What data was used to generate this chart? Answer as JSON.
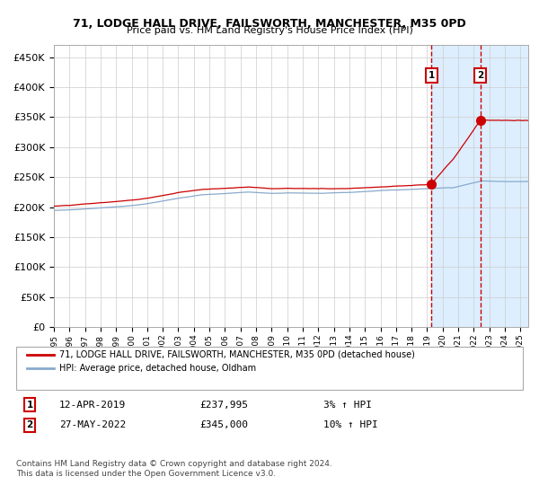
{
  "title": "71, LODGE HALL DRIVE, FAILSWORTH, MANCHESTER, M35 0PD",
  "subtitle": "Price paid vs. HM Land Registry's House Price Index (HPI)",
  "legend_line1": "71, LODGE HALL DRIVE, FAILSWORTH, MANCHESTER, M35 0PD (detached house)",
  "legend_line2": "HPI: Average price, detached house, Oldham",
  "annotation1_date": "12-APR-2019",
  "annotation1_price": "£237,995",
  "annotation1_hpi": "3% ↑ HPI",
  "annotation2_date": "27-MAY-2022",
  "annotation2_price": "£345,000",
  "annotation2_hpi": "10% ↑ HPI",
  "footer": "Contains HM Land Registry data © Crown copyright and database right 2024.\nThis data is licensed under the Open Government Licence v3.0.",
  "red_line_color": "#cc0000",
  "blue_line_color": "#88aacc",
  "background_color": "#ffffff",
  "plot_bg_color": "#ffffff",
  "shaded_bg_color": "#ddeeff",
  "grid_color": "#cccccc",
  "sale1_year": 2019.28,
  "sale1_value": 237995,
  "sale2_year": 2022.41,
  "sale2_value": 345000,
  "ylim": [
    0,
    470000
  ],
  "xlim_start": 1995.0,
  "xlim_end": 2025.5
}
